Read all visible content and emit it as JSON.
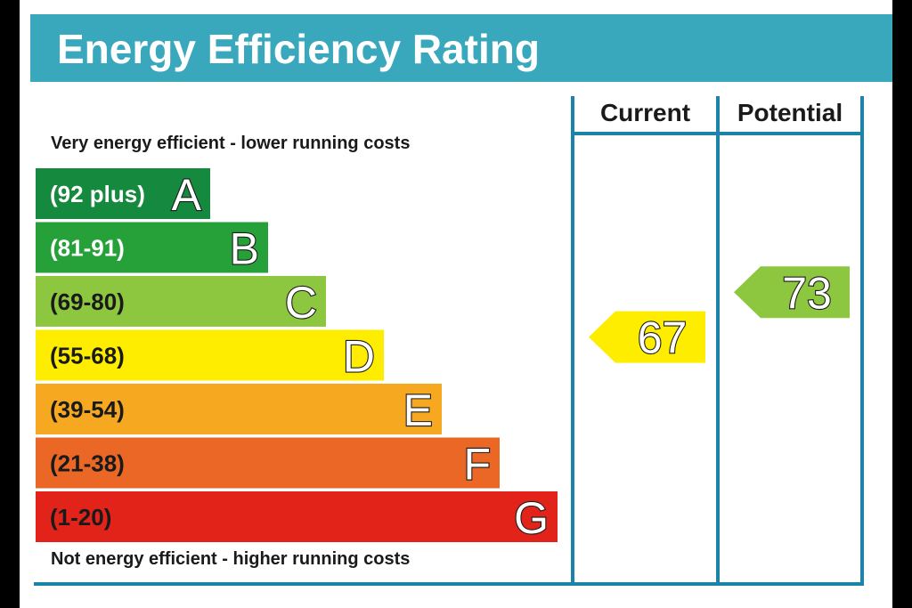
{
  "title": "Energy Efficiency Rating",
  "captions": {
    "top": "Very energy efficient - lower running costs",
    "bottom": "Not energy efficient - higher running costs"
  },
  "colors": {
    "header": "#3aa8bc",
    "frame": "#1b84a8",
    "A": "#158a3f",
    "B": "#26a13a",
    "C": "#8dc63f",
    "D": "#ffed00",
    "E": "#f6a821",
    "F": "#ea6725",
    "G": "#e2231a"
  },
  "chart_data": {
    "type": "bar",
    "title": "Energy Efficiency Rating",
    "bands": [
      {
        "letter": "A",
        "range": "(92 plus)",
        "min": 92,
        "max": 100
      },
      {
        "letter": "B",
        "range": "(81-91)",
        "min": 81,
        "max": 91
      },
      {
        "letter": "C",
        "range": "(69-80)",
        "min": 69,
        "max": 80
      },
      {
        "letter": "D",
        "range": "(55-68)",
        "min": 55,
        "max": 68
      },
      {
        "letter": "E",
        "range": "(39-54)",
        "min": 39,
        "max": 54
      },
      {
        "letter": "F",
        "range": "(21-38)",
        "min": 21,
        "max": 38
      },
      {
        "letter": "G",
        "range": "(1-20)",
        "min": 1,
        "max": 20
      }
    ],
    "columns": [
      {
        "label": "Current",
        "value": 67,
        "band": "D"
      },
      {
        "label": "Potential",
        "value": 73,
        "band": "C"
      }
    ]
  }
}
